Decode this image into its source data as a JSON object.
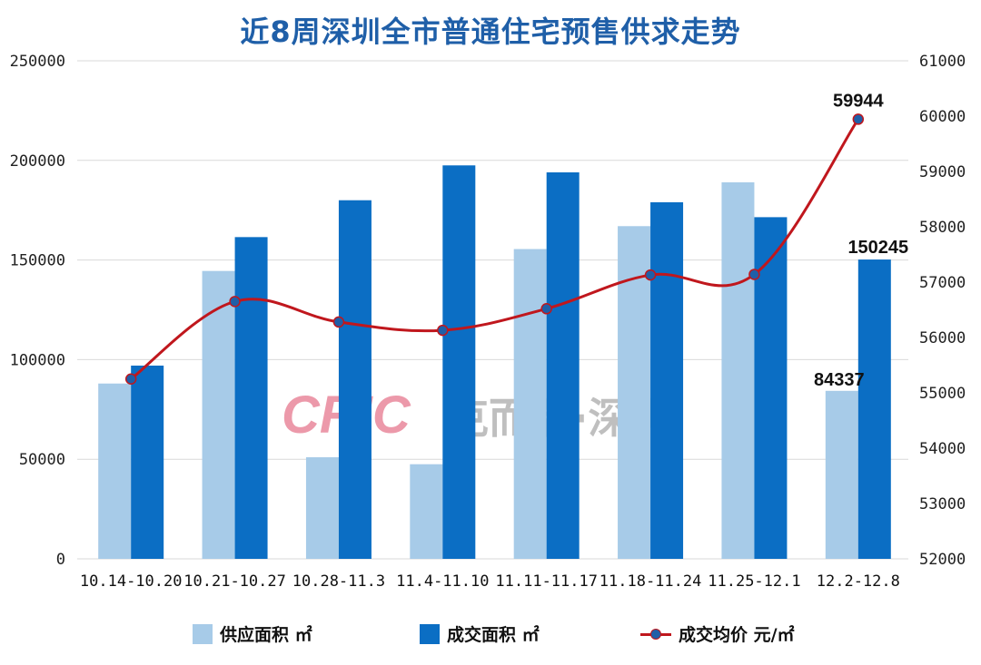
{
  "chart_data": {
    "type": "bar",
    "title": "近8周深圳全市普通住宅预售供求走势",
    "categories": [
      "10.14-10.20",
      "10.21-10.27",
      "10.28-11.3",
      "11.4-11.10",
      "11.11-11.17",
      "11.18-11.24",
      "11.25-12.1",
      "12.2-12.8"
    ],
    "series": [
      {
        "name": "供应面积 ㎡",
        "type": "bar",
        "axis": "left",
        "color": "#a7cbe8",
        "values": [
          88000,
          144500,
          51000,
          47500,
          155500,
          167000,
          189000,
          84337
        ]
      },
      {
        "name": "成交面积 ㎡",
        "type": "bar",
        "axis": "left",
        "color": "#0b6ec4",
        "values": [
          97000,
          161500,
          180000,
          197500,
          194000,
          179000,
          171500,
          150245
        ]
      },
      {
        "name": "成交均价  元/㎡",
        "type": "line",
        "axis": "right",
        "color": "#c0171d",
        "marker_color": "#1f5fa8",
        "values": [
          55250,
          56650,
          56280,
          56130,
          56520,
          57130,
          57140,
          59944
        ]
      }
    ],
    "left_axis": {
      "ylim": [
        0,
        250000
      ],
      "ticks": [
        "0",
        "50000",
        "100000",
        "150000",
        "200000",
        "250000"
      ]
    },
    "right_axis": {
      "ylim": [
        52000,
        61000
      ],
      "ticks": [
        "52000",
        "53000",
        "54000",
        "55000",
        "56000",
        "57000",
        "58000",
        "59000",
        "60000",
        "61000"
      ]
    },
    "data_labels": [
      {
        "series": 0,
        "index": 7,
        "text": "84337"
      },
      {
        "series": 1,
        "index": 7,
        "text": "150245"
      },
      {
        "series": 2,
        "index": 7,
        "text": "59944"
      }
    ],
    "grid": true,
    "legend_position": "bottom"
  },
  "watermark": {
    "logo": "CRIC",
    "text": "克而瑞·深圳"
  }
}
